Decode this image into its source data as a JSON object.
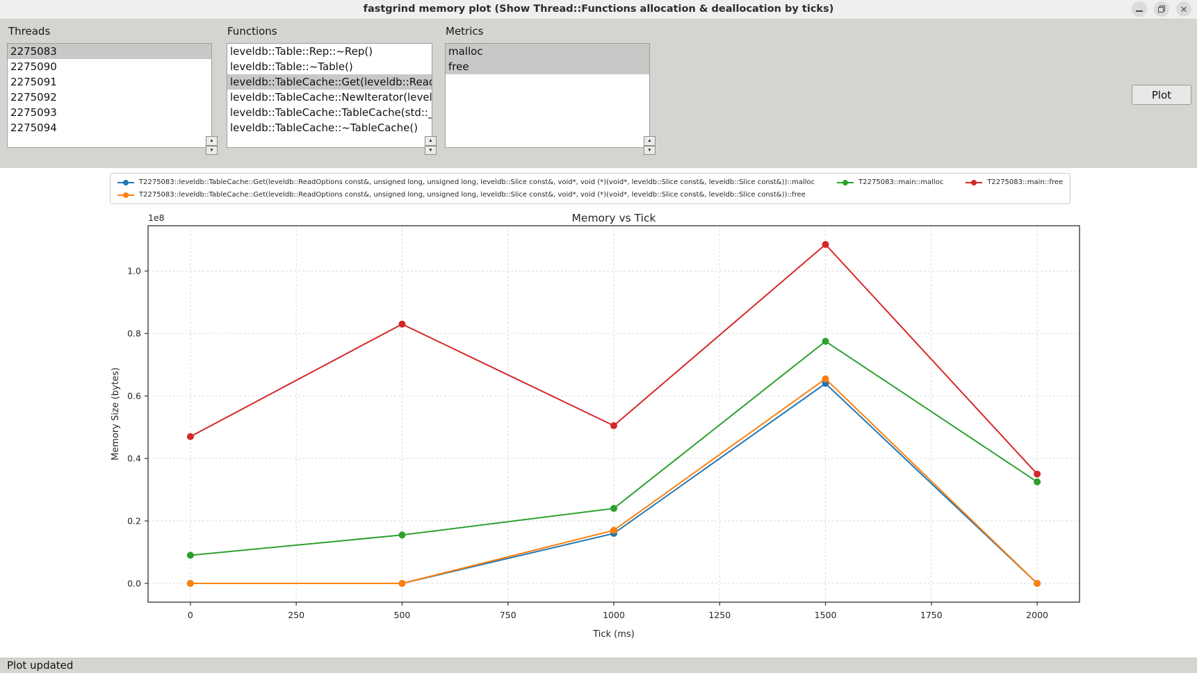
{
  "window": {
    "title": "fastgrind memory plot (Show Thread::Functions allocation & deallocation by ticks)"
  },
  "panels": {
    "threads": {
      "label": "Threads",
      "items": [
        {
          "text": "2275083",
          "selected": true
        },
        {
          "text": "2275090",
          "selected": false
        },
        {
          "text": "2275091",
          "selected": false
        },
        {
          "text": "2275092",
          "selected": false
        },
        {
          "text": "2275093",
          "selected": false
        },
        {
          "text": "2275094",
          "selected": false
        }
      ]
    },
    "functions": {
      "label": "Functions",
      "items": [
        {
          "text": "leveldb::Table::Rep::~Rep()",
          "selected": false
        },
        {
          "text": "leveldb::Table::~Table()",
          "selected": false
        },
        {
          "text": "leveldb::TableCache::Get(leveldb::ReadOptions",
          "selected": true
        },
        {
          "text": "leveldb::TableCache::NewIterator(leveldb",
          "selected": false
        },
        {
          "text": "leveldb::TableCache::TableCache(std::__",
          "selected": false
        },
        {
          "text": "leveldb::TableCache::~TableCache()",
          "selected": false
        }
      ]
    },
    "metrics": {
      "label": "Metrics",
      "items": [
        {
          "text": "malloc",
          "selected": true
        },
        {
          "text": "free",
          "selected": true
        }
      ]
    },
    "plot_button_label": "Plot"
  },
  "status_bar": {
    "text": "Plot updated"
  },
  "chart_data": {
    "type": "line",
    "title": "Memory vs Tick",
    "xlabel": "Tick (ms)",
    "ylabel": "Memory Size (bytes)",
    "offset_text": "1e8",
    "x": [
      0,
      500,
      1000,
      1500,
      2000
    ],
    "series": [
      {
        "name": "T2275083::leveldb::TableCache::Get(leveldb::ReadOptions const&, unsigned long, unsigned long, leveldb::Slice const&, void*, void (*)(void*, leveldb::Slice const&, leveldb::Slice const&))::malloc",
        "color": "#1f77b4",
        "values_1e8": [
          0.0,
          0.0,
          0.16,
          0.64,
          0.0
        ]
      },
      {
        "name": "T2275083::leveldb::TableCache::Get(leveldb::ReadOptions const&, unsigned long, unsigned long, leveldb::Slice const&, void*, void (*)(void*, leveldb::Slice const&, leveldb::Slice const&))::free",
        "color": "#ff7f0e",
        "values_1e8": [
          0.0,
          0.0,
          0.17,
          0.655,
          0.0
        ]
      },
      {
        "name": "T2275083::main::malloc",
        "color": "#2ca02c",
        "values_1e8": [
          0.09,
          0.155,
          0.24,
          0.775,
          0.325
        ]
      },
      {
        "name": "T2275083::main::free",
        "color": "#d62728",
        "values_1e8": [
          0.47,
          0.83,
          0.505,
          1.085,
          0.35
        ]
      }
    ],
    "legend_grid": [
      {
        "series": 0,
        "row": 1,
        "col": 1
      },
      {
        "series": 2,
        "row": 1,
        "col": 2
      },
      {
        "series": 3,
        "row": 1,
        "col": 3
      },
      {
        "series": 1,
        "row": 2,
        "col": 1
      }
    ],
    "xticks": [
      0,
      250,
      500,
      750,
      1000,
      1250,
      1500,
      1750,
      2000
    ],
    "yticks_1e8": [
      0.0,
      0.2,
      0.4,
      0.6,
      0.8,
      1.0
    ],
    "xlim": [
      -100,
      2100
    ],
    "ylim_1e8": [
      -0.06,
      1.145
    ],
    "grid": true,
    "legend_position": "top"
  }
}
